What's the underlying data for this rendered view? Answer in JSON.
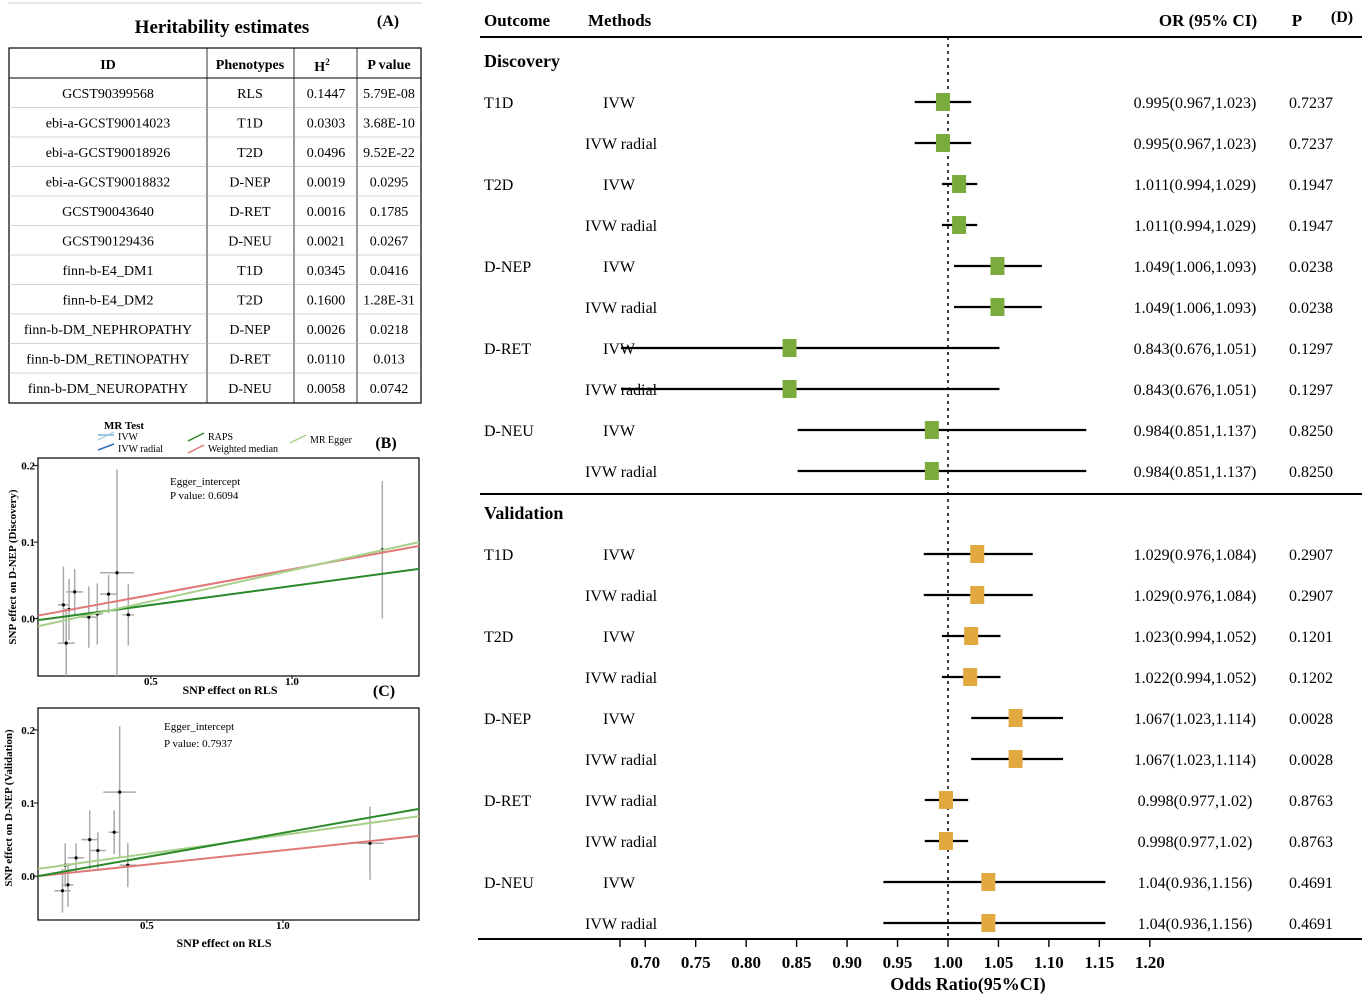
{
  "panelA": {
    "title": "Heritability estimates",
    "tag": "(A)",
    "headers": {
      "id": "ID",
      "phen": "Phenotypes",
      "h2": "H",
      "h2sup": "2",
      "p": "P value"
    },
    "rows": [
      [
        "GCST90399568",
        "RLS",
        "0.1447",
        "5.79E-08"
      ],
      [
        "ebi-a-GCST90014023",
        "T1D",
        "0.0303",
        "3.68E-10"
      ],
      [
        "ebi-a-GCST90018926",
        "T2D",
        "0.0496",
        "9.52E-22"
      ],
      [
        "ebi-a-GCST90018832",
        "D-NEP",
        "0.0019",
        "0.0295"
      ],
      [
        "GCST90043640",
        "D-RET",
        "0.0016",
        "0.1785"
      ],
      [
        "GCST90129436",
        "D-NEU",
        "0.0021",
        "0.0267"
      ],
      [
        "finn-b-E4_DM1",
        "T1D",
        "0.0345",
        "0.0416"
      ],
      [
        "finn-b-E4_DM2",
        "T2D",
        "0.1600",
        "1.28E-31"
      ],
      [
        "finn-b-DM_NEPHROPATHY",
        "D-NEP",
        "0.0026",
        "0.0218"
      ],
      [
        "finn-b-DM_RETINOPATHY",
        "D-RET",
        "0.0110",
        "0.013"
      ],
      [
        "finn-b-DM_NEUROPATHY",
        "D-NEU",
        "0.0058",
        "0.0742"
      ]
    ]
  },
  "legend": {
    "title": "MR Test",
    "items": [
      {
        "label": "IVW",
        "color": "#9ec4e0"
      },
      {
        "label": "IVW radial",
        "color": "#2c6eb5"
      },
      {
        "label": "RAPS",
        "color": "#2a8a2a"
      },
      {
        "label": "Weighted median",
        "color": "#e07878"
      },
      {
        "label": "MR Egger",
        "color": "#a8d08a"
      }
    ]
  },
  "chart_data": [
    {
      "type": "table",
      "panel": "A",
      "columns": [
        "ID",
        "Phenotypes",
        "H2",
        "P value"
      ]
    },
    {
      "type": "scatter",
      "panel": "B",
      "tag": "(B)",
      "xlabel": "SNP effect on RLS",
      "ylabel": "SNP effect on D-NEP (Discovery)",
      "annotation": [
        "Egger_intercept",
        "P value: 0.6094"
      ],
      "xlim": [
        0.1,
        1.45
      ],
      "ylim": [
        -0.075,
        0.21
      ],
      "xticks": [
        "0.5",
        "1.0"
      ],
      "yticks": [
        "0.2",
        "0.1",
        "0.0"
      ],
      "points": [
        {
          "x": 0.19,
          "y": 0.018,
          "xe": 0.02,
          "ye": 0.05
        },
        {
          "x": 0.2,
          "y": -0.032,
          "xe": 0.03,
          "ye": 0.045
        },
        {
          "x": 0.21,
          "y": 0.012,
          "xe": 0.02,
          "ye": 0.04
        },
        {
          "x": 0.23,
          "y": 0.035,
          "xe": 0.03,
          "ye": 0.03
        },
        {
          "x": 0.28,
          "y": 0.002,
          "xe": 0.03,
          "ye": 0.04
        },
        {
          "x": 0.31,
          "y": 0.006,
          "xe": 0.02,
          "ye": 0.04
        },
        {
          "x": 0.35,
          "y": 0.032,
          "xe": 0.03,
          "ye": 0.025
        },
        {
          "x": 0.38,
          "y": 0.06,
          "xe": 0.06,
          "ye": 0.135
        },
        {
          "x": 0.42,
          "y": 0.005,
          "xe": 0.02,
          "ye": 0.04
        },
        {
          "x": 1.32,
          "y": 0.09,
          "xe": 0.0,
          "ye": 0.09
        }
      ],
      "lines": [
        {
          "name": "Weighted median",
          "color": "#e07878",
          "y0": 0.004,
          "y1": 0.095
        },
        {
          "name": "RAPS",
          "color": "#2a8a2a",
          "y0": -0.002,
          "y1": 0.065
        },
        {
          "name": "MR Egger",
          "color": "#a8d08a",
          "y0": -0.01,
          "y1": 0.1
        }
      ]
    },
    {
      "type": "scatter",
      "panel": "C",
      "tag": "(C)",
      "xlabel": "SNP effect on RLS",
      "ylabel": "SNP effect on D-NEP (Validation)",
      "annotation": [
        "Egger_intercept",
        "P value: 0.7937"
      ],
      "xlim": [
        0.1,
        1.5
      ],
      "ylim": [
        -0.06,
        0.23
      ],
      "xticks": [
        "0.5",
        "1.0"
      ],
      "yticks": [
        "0.2",
        "0.1",
        "0.0"
      ],
      "points": [
        {
          "x": 0.19,
          "y": -0.02,
          "xe": 0.03,
          "ye": 0.03
        },
        {
          "x": 0.2,
          "y": 0.015,
          "xe": 0.02,
          "ye": 0.03
        },
        {
          "x": 0.21,
          "y": -0.012,
          "xe": 0.02,
          "ye": 0.03
        },
        {
          "x": 0.24,
          "y": 0.025,
          "xe": 0.03,
          "ye": 0.02
        },
        {
          "x": 0.29,
          "y": 0.05,
          "xe": 0.03,
          "ye": 0.04
        },
        {
          "x": 0.32,
          "y": 0.035,
          "xe": 0.03,
          "ye": 0.025
        },
        {
          "x": 0.38,
          "y": 0.06,
          "xe": 0.02,
          "ye": 0.03
        },
        {
          "x": 0.4,
          "y": 0.115,
          "xe": 0.06,
          "ye": 0.09
        },
        {
          "x": 0.43,
          "y": 0.015,
          "xe": 0.03,
          "ye": 0.03
        },
        {
          "x": 1.32,
          "y": 0.045,
          "xe": 0.05,
          "ye": 0.05
        }
      ],
      "lines": [
        {
          "name": "Weighted median",
          "color": "#e07878",
          "y0": 0.0,
          "y1": 0.055
        },
        {
          "name": "MR Egger",
          "color": "#a8d08a",
          "y0": 0.01,
          "y1": 0.082
        },
        {
          "name": "RAPS",
          "color": "#2a8a2a",
          "y0": 0.0,
          "y1": 0.092
        }
      ]
    },
    {
      "type": "forest",
      "panel": "D",
      "tag": "(D)",
      "xlabel": "Odds Ratio(95%CI)",
      "xlim": [
        0.675,
        1.22
      ],
      "xticks": [
        "0.70",
        "0.75",
        "0.80",
        "0.85",
        "0.90",
        "0.95",
        "1.00",
        "1.05",
        "1.10",
        "1.15",
        "1.20"
      ],
      "ref_line": 1.0,
      "headers": {
        "outcome": "Outcome",
        "methods": "Methods",
        "or": "OR (95% CI)",
        "p": "P"
      },
      "groups": [
        {
          "label": "Discovery",
          "color": "#7aab3c",
          "rows": [
            {
              "outcome": "T1D",
              "method": "IVW",
              "or": 0.995,
              "lo": 0.967,
              "hi": 1.023,
              "text": "0.995(0.967,1.023)",
              "p": "0.7237"
            },
            {
              "outcome": "",
              "method": "IVW radial",
              "or": 0.995,
              "lo": 0.967,
              "hi": 1.023,
              "text": "0.995(0.967,1.023)",
              "p": "0.7237"
            },
            {
              "outcome": "T2D",
              "method": "IVW",
              "or": 1.011,
              "lo": 0.994,
              "hi": 1.029,
              "text": "1.011(0.994,1.029)",
              "p": "0.1947"
            },
            {
              "outcome": "",
              "method": "IVW radial",
              "or": 1.011,
              "lo": 0.994,
              "hi": 1.029,
              "text": "1.011(0.994,1.029)",
              "p": "0.1947"
            },
            {
              "outcome": "D-NEP",
              "method": "IVW",
              "or": 1.049,
              "lo": 1.006,
              "hi": 1.093,
              "text": "1.049(1.006,1.093)",
              "p": "0.0238"
            },
            {
              "outcome": "",
              "method": "IVW radial",
              "or": 1.049,
              "lo": 1.006,
              "hi": 1.093,
              "text": "1.049(1.006,1.093)",
              "p": "0.0238"
            },
            {
              "outcome": "D-RET",
              "method": "IVW",
              "or": 0.843,
              "lo": 0.676,
              "hi": 1.051,
              "text": "0.843(0.676,1.051)",
              "p": "0.1297"
            },
            {
              "outcome": "",
              "method": "IVW radial",
              "or": 0.843,
              "lo": 0.676,
              "hi": 1.051,
              "text": "0.843(0.676,1.051)",
              "p": "0.1297"
            },
            {
              "outcome": "D-NEU",
              "method": "IVW",
              "or": 0.984,
              "lo": 0.851,
              "hi": 1.137,
              "text": "0.984(0.851,1.137)",
              "p": "0.8250"
            },
            {
              "outcome": "",
              "method": "IVW radial",
              "or": 0.984,
              "lo": 0.851,
              "hi": 1.137,
              "text": "0.984(0.851,1.137)",
              "p": "0.8250"
            }
          ]
        },
        {
          "label": "Validation",
          "color": "#e1a940",
          "rows": [
            {
              "outcome": "T1D",
              "method": "IVW",
              "or": 1.029,
              "lo": 0.976,
              "hi": 1.084,
              "text": "1.029(0.976,1.084)",
              "p": "0.2907"
            },
            {
              "outcome": "",
              "method": "IVW radial",
              "or": 1.029,
              "lo": 0.976,
              "hi": 1.084,
              "text": "1.029(0.976,1.084)",
              "p": "0.2907"
            },
            {
              "outcome": "T2D",
              "method": "IVW",
              "or": 1.023,
              "lo": 0.994,
              "hi": 1.052,
              "text": "1.023(0.994,1.052)",
              "p": "0.1201"
            },
            {
              "outcome": "",
              "method": "IVW radial",
              "or": 1.022,
              "lo": 0.994,
              "hi": 1.052,
              "text": "1.022(0.994,1.052)",
              "p": "0.1202"
            },
            {
              "outcome": "D-NEP",
              "method": "IVW",
              "or": 1.067,
              "lo": 1.023,
              "hi": 1.114,
              "text": "1.067(1.023,1.114)",
              "p": "0.0028"
            },
            {
              "outcome": "",
              "method": "IVW radial",
              "or": 1.067,
              "lo": 1.023,
              "hi": 1.114,
              "text": "1.067(1.023,1.114)",
              "p": "0.0028"
            },
            {
              "outcome": "D-RET",
              "method": "IVW radial",
              "or": 0.998,
              "lo": 0.977,
              "hi": 1.02,
              "text": "0.998(0.977,1.02)",
              "p": "0.8763"
            },
            {
              "outcome": "",
              "method": "IVW radial",
              "or": 0.998,
              "lo": 0.977,
              "hi": 1.02,
              "text": "0.998(0.977,1.02)",
              "p": "0.8763"
            },
            {
              "outcome": "D-NEU",
              "method": "IVW",
              "or": 1.04,
              "lo": 0.936,
              "hi": 1.156,
              "text": "1.04(0.936,1.156)",
              "p": "0.4691"
            },
            {
              "outcome": "",
              "method": "IVW radial",
              "or": 1.04,
              "lo": 0.936,
              "hi": 1.156,
              "text": "1.04(0.936,1.156)",
              "p": "0.4691"
            }
          ]
        }
      ]
    }
  ]
}
